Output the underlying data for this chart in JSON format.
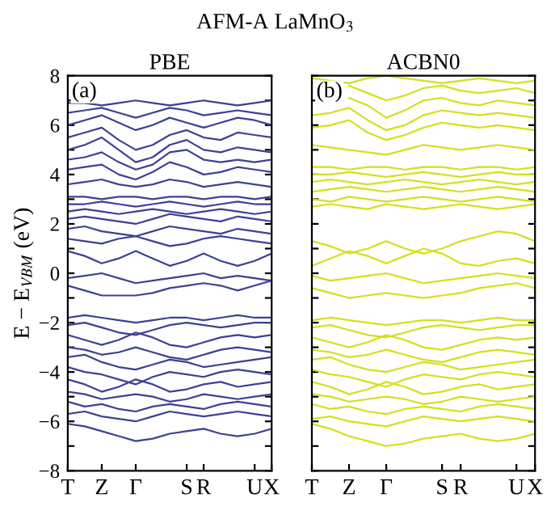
{
  "chart_data": [
    {
      "type": "line",
      "title": "PBE",
      "ylabel": "E − E$_{VBM}$ (eV)",
      "annotations": [
        "AFM-A LaMnO$_{3}$",
        "(a)"
      ],
      "color": "#3c4193",
      "line_style": "solid",
      "marker": "none",
      "grid": false,
      "legend": false,
      "categories": [
        "T",
        null,
        "Z",
        null,
        "Γ",
        null,
        null,
        "S",
        "R",
        null,
        null,
        "U",
        "X"
      ],
      "ylim": [
        -8,
        8
      ],
      "yticks": [
        {
          "value": -8,
          "label": "−8"
        },
        {
          "value": -7,
          "label": null
        },
        {
          "value": -6,
          "label": "−6"
        },
        {
          "value": -5,
          "label": null
        },
        {
          "value": -4,
          "label": "−4"
        },
        {
          "value": -3,
          "label": null
        },
        {
          "value": -2,
          "label": "−2"
        },
        {
          "value": -1,
          "label": null
        },
        0,
        {
          "value": 1,
          "label": null
        },
        2,
        {
          "value": 3,
          "label": null
        },
        4,
        {
          "value": 5,
          "label": null
        },
        6,
        {
          "value": 7,
          "label": null
        },
        8
      ],
      "series": [
        {
          "values": [
            6.9,
            6.9,
            6.8,
            6.9,
            7.0,
            6.9,
            6.8,
            6.9,
            7.0,
            6.9,
            6.8,
            6.9,
            7.0
          ]
        },
        {
          "values": [
            6.5,
            6.6,
            6.7,
            6.5,
            6.3,
            6.5,
            6.7,
            6.6,
            6.4,
            6.5,
            6.6,
            6.5,
            6.4
          ]
        },
        {
          "values": [
            6.0,
            6.2,
            6.4,
            6.1,
            5.8,
            6.0,
            6.3,
            6.1,
            5.9,
            6.1,
            6.3,
            6.2,
            6.0
          ]
        },
        {
          "values": [
            5.5,
            5.7,
            5.9,
            5.4,
            5.0,
            5.2,
            5.6,
            5.8,
            5.5,
            5.4,
            5.7,
            5.6,
            5.5
          ]
        },
        {
          "values": [
            5.0,
            5.2,
            5.5,
            5.0,
            4.5,
            4.7,
            5.2,
            5.4,
            5.0,
            4.9,
            5.1,
            5.0,
            4.9
          ]
        },
        {
          "values": [
            4.6,
            4.7,
            4.9,
            4.5,
            4.2,
            4.4,
            4.9,
            5.0,
            4.6,
            4.5,
            4.6,
            4.5,
            4.6
          ]
        },
        {
          "values": [
            4.2,
            4.3,
            4.4,
            4.0,
            3.8,
            4.1,
            4.5,
            4.3,
            4.0,
            4.1,
            4.3,
            4.2,
            4.1
          ]
        },
        {
          "values": [
            3.6,
            3.7,
            3.8,
            3.6,
            3.5,
            3.6,
            3.8,
            3.7,
            3.5,
            3.6,
            3.7,
            3.6,
            3.5
          ]
        },
        {
          "values": [
            3.1,
            3.1,
            3.0,
            3.1,
            3.1,
            3.0,
            3.1,
            3.1,
            3.0,
            3.1,
            3.1,
            3.0,
            3.1
          ]
        },
        {
          "values": [
            2.8,
            2.8,
            2.9,
            2.8,
            2.7,
            2.8,
            2.9,
            2.8,
            2.7,
            2.8,
            2.9,
            2.8,
            2.8
          ]
        },
        {
          "values": [
            2.5,
            2.6,
            2.5,
            2.4,
            2.5,
            2.6,
            2.5,
            2.4,
            2.5,
            2.6,
            2.5,
            2.4,
            2.5
          ]
        },
        {
          "values": [
            2.2,
            2.3,
            2.2,
            2.1,
            2.0,
            2.2,
            2.4,
            2.3,
            2.2,
            2.1,
            2.3,
            2.2,
            2.1
          ]
        },
        {
          "values": [
            1.8,
            1.9,
            1.7,
            1.6,
            1.5,
            1.7,
            1.9,
            1.8,
            1.7,
            1.6,
            1.8,
            1.7,
            1.6
          ]
        },
        {
          "values": [
            1.4,
            1.3,
            1.2,
            1.4,
            1.5,
            1.3,
            1.1,
            1.2,
            1.4,
            1.5,
            1.4,
            1.3,
            1.2
          ]
        },
        {
          "values": [
            0.9,
            0.7,
            0.4,
            0.6,
            0.9,
            0.6,
            0.3,
            0.5,
            0.8,
            0.5,
            0.3,
            0.5,
            0.8
          ]
        },
        {
          "values": [
            -0.2,
            -0.1,
            0.0,
            -0.2,
            -0.4,
            -0.3,
            -0.2,
            -0.1,
            0.0,
            -0.2,
            -0.1,
            -0.2,
            -0.3
          ]
        },
        {
          "values": [
            -0.5,
            -0.7,
            -0.9,
            -0.9,
            -0.9,
            -0.8,
            -0.6,
            -0.5,
            -0.4,
            -0.5,
            -0.7,
            -0.5,
            -0.3
          ]
        },
        {
          "values": [
            -1.8,
            -1.7,
            -1.8,
            -1.9,
            -2.0,
            -1.9,
            -1.8,
            -1.8,
            -1.9,
            -1.8,
            -1.7,
            -1.8,
            -1.8
          ]
        },
        {
          "values": [
            -2.1,
            -2.0,
            -2.2,
            -2.4,
            -2.5,
            -2.3,
            -2.1,
            -2.0,
            -2.1,
            -2.2,
            -2.1,
            -2.0,
            -2.0
          ]
        },
        {
          "values": [
            -2.5,
            -2.7,
            -2.9,
            -2.7,
            -2.4,
            -2.6,
            -2.9,
            -3.0,
            -2.8,
            -2.6,
            -2.5,
            -2.6,
            -2.5
          ]
        },
        {
          "values": [
            -3.0,
            -3.1,
            -3.3,
            -3.2,
            -3.0,
            -3.2,
            -3.4,
            -3.5,
            -3.3,
            -3.1,
            -3.0,
            -3.1,
            -3.2
          ]
        },
        {
          "values": [
            -3.4,
            -3.3,
            -3.6,
            -3.8,
            -3.9,
            -3.7,
            -3.5,
            -3.6,
            -3.8,
            -3.7,
            -3.6,
            -3.5,
            -3.4
          ]
        },
        {
          "values": [
            -3.8,
            -4.0,
            -4.1,
            -4.3,
            -4.5,
            -4.2,
            -4.0,
            -4.1,
            -4.2,
            -4.0,
            -3.9,
            -4.0,
            -4.1
          ]
        },
        {
          "values": [
            -4.3,
            -4.5,
            -4.8,
            -4.6,
            -4.3,
            -4.5,
            -4.8,
            -4.7,
            -4.5,
            -4.4,
            -4.6,
            -4.5,
            -4.4
          ]
        },
        {
          "values": [
            -4.8,
            -4.9,
            -5.1,
            -5.0,
            -4.9,
            -5.0,
            -5.2,
            -5.1,
            -4.9,
            -5.0,
            -5.1,
            -5.0,
            -4.9
          ]
        },
        {
          "values": [
            -5.2,
            -5.4,
            -5.3,
            -5.5,
            -5.6,
            -5.4,
            -5.3,
            -5.4,
            -5.5,
            -5.3,
            -5.2,
            -5.3,
            -5.4
          ]
        },
        {
          "values": [
            -5.7,
            -5.6,
            -5.8,
            -5.9,
            -6.0,
            -5.8,
            -5.6,
            -5.7,
            -5.8,
            -5.7,
            -5.6,
            -5.7,
            -5.8
          ]
        },
        {
          "values": [
            -6.1,
            -6.2,
            -6.4,
            -6.6,
            -6.8,
            -6.7,
            -6.5,
            -6.4,
            -6.3,
            -6.5,
            -6.6,
            -6.5,
            -6.3
          ]
        }
      ]
    },
    {
      "type": "line",
      "title": "ACBN0",
      "annotations": [
        "(b)"
      ],
      "color": "#d4e01c",
      "line_style": "solid",
      "marker": "none",
      "grid": false,
      "legend": false,
      "tick_labels": "x",
      "categories": [
        "T",
        null,
        "Z",
        null,
        "Γ",
        null,
        null,
        "S",
        "R",
        null,
        null,
        "U",
        "X"
      ],
      "ylim": [
        -8,
        8
      ],
      "yticks": [
        -8,
        -7,
        -6,
        -5,
        -4,
        -3,
        -2,
        -1,
        0,
        1,
        2,
        3,
        4,
        5,
        6,
        7,
        8
      ],
      "series": [
        {
          "values": [
            7.9,
            7.8,
            7.7,
            7.9,
            8.0,
            7.9,
            7.8,
            7.7,
            7.8,
            7.9,
            7.8,
            7.7,
            7.8
          ]
        },
        {
          "values": [
            null,
            null,
            7.6,
            7.3,
            7.0,
            7.2,
            7.5,
            7.6,
            7.4,
            7.3,
            7.4,
            7.5,
            7.3
          ]
        },
        {
          "values": [
            null,
            null,
            7.1,
            6.8,
            6.3,
            6.6,
            7.0,
            7.1,
            6.9,
            6.8,
            7.0,
            6.9,
            6.8
          ]
        },
        {
          "values": [
            6.4,
            6.5,
            6.7,
            6.2,
            5.8,
            6.0,
            6.4,
            6.6,
            6.5,
            6.4,
            6.5,
            6.4,
            6.3
          ]
        },
        {
          "values": [
            5.9,
            6.0,
            6.2,
            5.7,
            5.4,
            5.6,
            5.9,
            6.1,
            6.0,
            5.9,
            6.0,
            5.9,
            5.8
          ]
        },
        {
          "values": [
            5.2,
            5.1,
            5.0,
            4.9,
            4.8,
            5.0,
            5.2,
            5.1,
            5.0,
            5.1,
            5.2,
            5.1,
            5.0
          ]
        },
        {
          "values": [
            4.3,
            4.3,
            4.2,
            4.3,
            4.3,
            4.2,
            4.3,
            4.3,
            4.2,
            4.3,
            4.3,
            4.2,
            4.3
          ]
        },
        {
          "values": [
            4.0,
            4.0,
            4.1,
            4.0,
            3.9,
            4.0,
            4.1,
            4.0,
            3.9,
            4.0,
            4.1,
            4.0,
            4.0
          ]
        },
        {
          "values": [
            3.7,
            3.8,
            3.7,
            3.6,
            3.7,
            3.8,
            3.7,
            3.6,
            3.7,
            3.8,
            3.7,
            3.6,
            3.7
          ]
        },
        {
          "values": [
            3.3,
            3.4,
            3.5,
            3.4,
            3.3,
            3.4,
            3.5,
            3.4,
            3.3,
            3.4,
            3.5,
            3.4,
            3.3
          ]
        },
        {
          "values": [
            3.0,
            2.9,
            3.1,
            3.0,
            2.9,
            3.0,
            3.1,
            3.0,
            2.9,
            3.0,
            3.1,
            3.0,
            2.9
          ]
        },
        {
          "values": [
            2.7,
            2.8,
            2.7,
            2.6,
            2.8,
            2.7,
            2.6,
            2.7,
            2.8,
            2.7,
            2.6,
            2.7,
            2.8
          ]
        },
        {
          "values": [
            1.3,
            1.1,
            0.8,
            1.0,
            1.3,
            1.0,
            0.8,
            1.0,
            1.3,
            1.5,
            1.7,
            1.6,
            1.3
          ]
        },
        {
          "values": [
            0.3,
            0.6,
            0.9,
            0.7,
            0.4,
            0.7,
            1.0,
            0.8,
            0.4,
            0.3,
            0.5,
            0.6,
            0.4
          ]
        },
        {
          "values": [
            -0.1,
            -0.3,
            -0.2,
            -0.1,
            0.0,
            -0.2,
            -0.4,
            -0.3,
            -0.2,
            -0.1,
            0.0,
            -0.1,
            -0.2
          ]
        },
        {
          "values": [
            -0.6,
            -0.8,
            -1.0,
            -0.9,
            -0.8,
            -0.9,
            -1.0,
            -0.9,
            -0.8,
            -0.6,
            -0.5,
            -0.4,
            -0.6
          ]
        },
        {
          "values": [
            -1.9,
            -1.8,
            -1.9,
            -2.0,
            -2.1,
            -2.0,
            -1.9,
            -1.9,
            -2.0,
            -1.9,
            -1.8,
            -1.9,
            -1.9
          ]
        },
        {
          "values": [
            -2.2,
            -2.1,
            -2.3,
            -2.5,
            -2.6,
            -2.4,
            -2.2,
            -2.1,
            -2.2,
            -2.3,
            -2.2,
            -2.1,
            -2.1
          ]
        },
        {
          "values": [
            -2.6,
            -2.8,
            -3.0,
            -2.8,
            -2.5,
            -2.7,
            -3.0,
            -3.1,
            -2.9,
            -2.7,
            -2.6,
            -2.7,
            -2.6
          ]
        },
        {
          "values": [
            -3.1,
            -3.2,
            -3.4,
            -3.3,
            -3.1,
            -3.3,
            -3.5,
            -3.6,
            -3.4,
            -3.2,
            -3.1,
            -3.2,
            -3.3
          ]
        },
        {
          "values": [
            -3.5,
            -3.4,
            -3.7,
            -3.9,
            -4.0,
            -3.8,
            -3.6,
            -3.7,
            -3.9,
            -3.8,
            -3.7,
            -3.6,
            -3.5
          ]
        },
        {
          "values": [
            -3.9,
            -4.1,
            -4.2,
            -4.4,
            -4.6,
            -4.3,
            -4.1,
            -4.2,
            -4.3,
            -4.1,
            -4.0,
            -4.1,
            -4.2
          ]
        },
        {
          "values": [
            -4.4,
            -4.6,
            -4.9,
            -4.7,
            -4.4,
            -4.6,
            -4.9,
            -4.8,
            -4.6,
            -4.5,
            -4.7,
            -4.6,
            -4.5
          ]
        },
        {
          "values": [
            -4.9,
            -5.0,
            -5.2,
            -5.1,
            -5.0,
            -5.1,
            -5.3,
            -5.2,
            -5.0,
            -5.1,
            -5.2,
            -5.1,
            -5.0
          ]
        },
        {
          "values": [
            -5.3,
            -5.5,
            -5.4,
            -5.6,
            -5.7,
            -5.5,
            -5.4,
            -5.5,
            -5.6,
            -5.4,
            -5.3,
            -5.4,
            -5.5
          ]
        },
        {
          "values": [
            -5.9,
            -5.8,
            -6.0,
            -6.1,
            -6.2,
            -6.0,
            -5.8,
            -5.9,
            -6.0,
            -5.9,
            -5.8,
            -5.9,
            -6.0
          ]
        },
        {
          "values": [
            -6.1,
            -6.3,
            -6.6,
            -6.8,
            -7.0,
            -6.9,
            -6.7,
            -6.6,
            -6.5,
            -6.7,
            -6.8,
            -6.7,
            -6.5
          ]
        }
      ]
    }
  ]
}
